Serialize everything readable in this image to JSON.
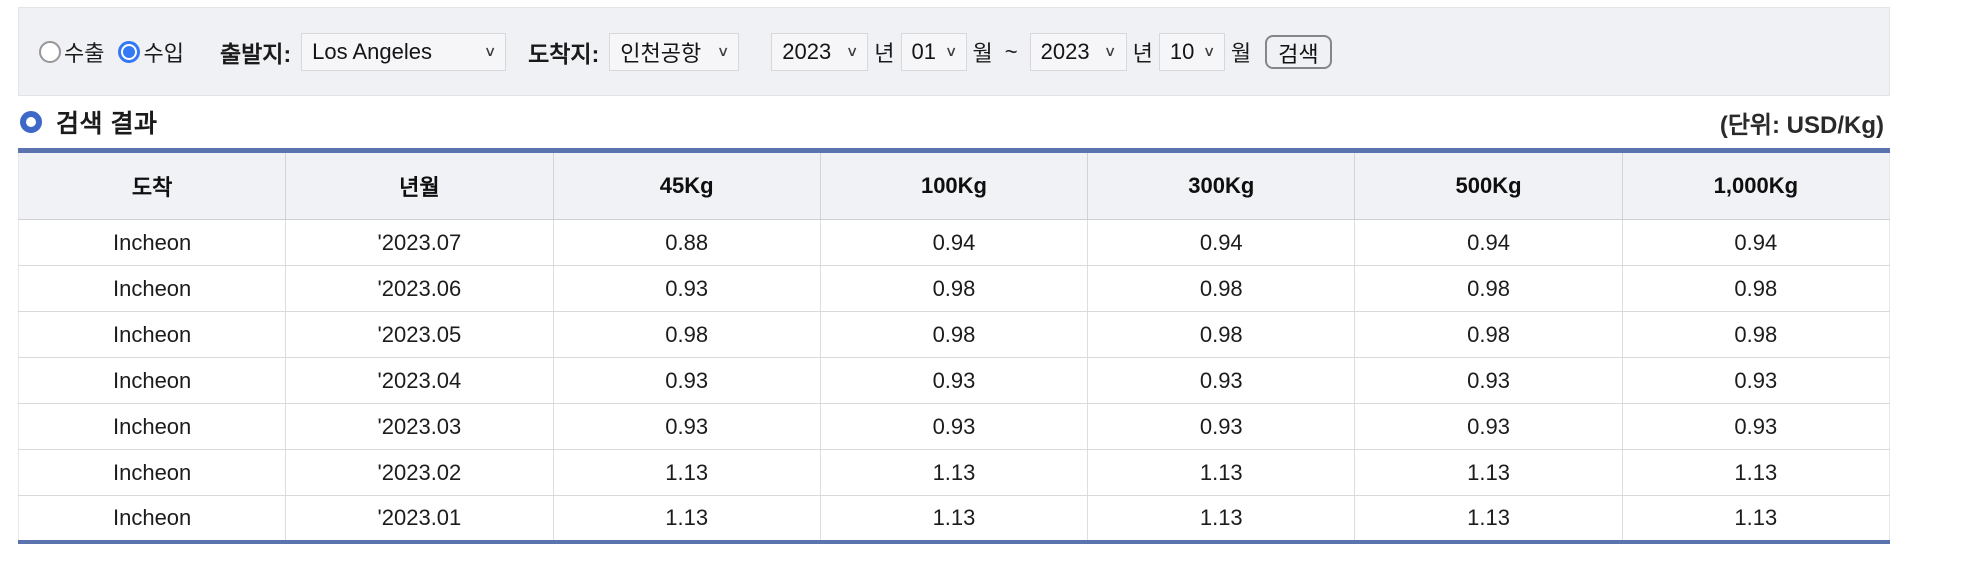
{
  "toolbar": {
    "radio_export_label": "수출",
    "radio_import_label": "수입",
    "radio_selected": "수입",
    "origin_label": "출발지:",
    "origin_value": "Los Angeles",
    "dest_label": "도착지:",
    "dest_value": "인천공항",
    "from_year": "2023",
    "from_year_suffix": "년",
    "from_month": "01",
    "from_month_suffix": "월",
    "range_separator": "~",
    "to_year": "2023",
    "to_year_suffix": "년",
    "to_month": "10",
    "to_month_suffix": "월",
    "search_button_label": "검색"
  },
  "results": {
    "title": "검색 결과",
    "unit": "(단위: USD/Kg)"
  },
  "table": {
    "headers": [
      "도착",
      "년월",
      "45Kg",
      "100Kg",
      "300Kg",
      "500Kg",
      "1,000Kg"
    ],
    "rows": [
      [
        "Incheon",
        "'2023.07",
        "0.88",
        "0.94",
        "0.94",
        "0.94",
        "0.94"
      ],
      [
        "Incheon",
        "'2023.06",
        "0.93",
        "0.98",
        "0.98",
        "0.98",
        "0.98"
      ],
      [
        "Incheon",
        "'2023.05",
        "0.98",
        "0.98",
        "0.98",
        "0.98",
        "0.98"
      ],
      [
        "Incheon",
        "'2023.04",
        "0.93",
        "0.93",
        "0.93",
        "0.93",
        "0.93"
      ],
      [
        "Incheon",
        "'2023.03",
        "0.93",
        "0.93",
        "0.93",
        "0.93",
        "0.93"
      ],
      [
        "Incheon",
        "'2023.02",
        "1.13",
        "1.13",
        "1.13",
        "1.13",
        "1.13"
      ],
      [
        "Incheon",
        "'2023.01",
        "1.13",
        "1.13",
        "1.13",
        "1.13",
        "1.13"
      ]
    ]
  },
  "colors": {
    "table_border_blue": "#5b74b0",
    "radio_selected_blue": "#3478f6",
    "section_ring_blue": "#3e68c7",
    "toolbar_bg": "#f0f1f4",
    "header_row_bg": "#f1f2f6"
  },
  "icons": {
    "dropdown_chevron": "∨"
  }
}
